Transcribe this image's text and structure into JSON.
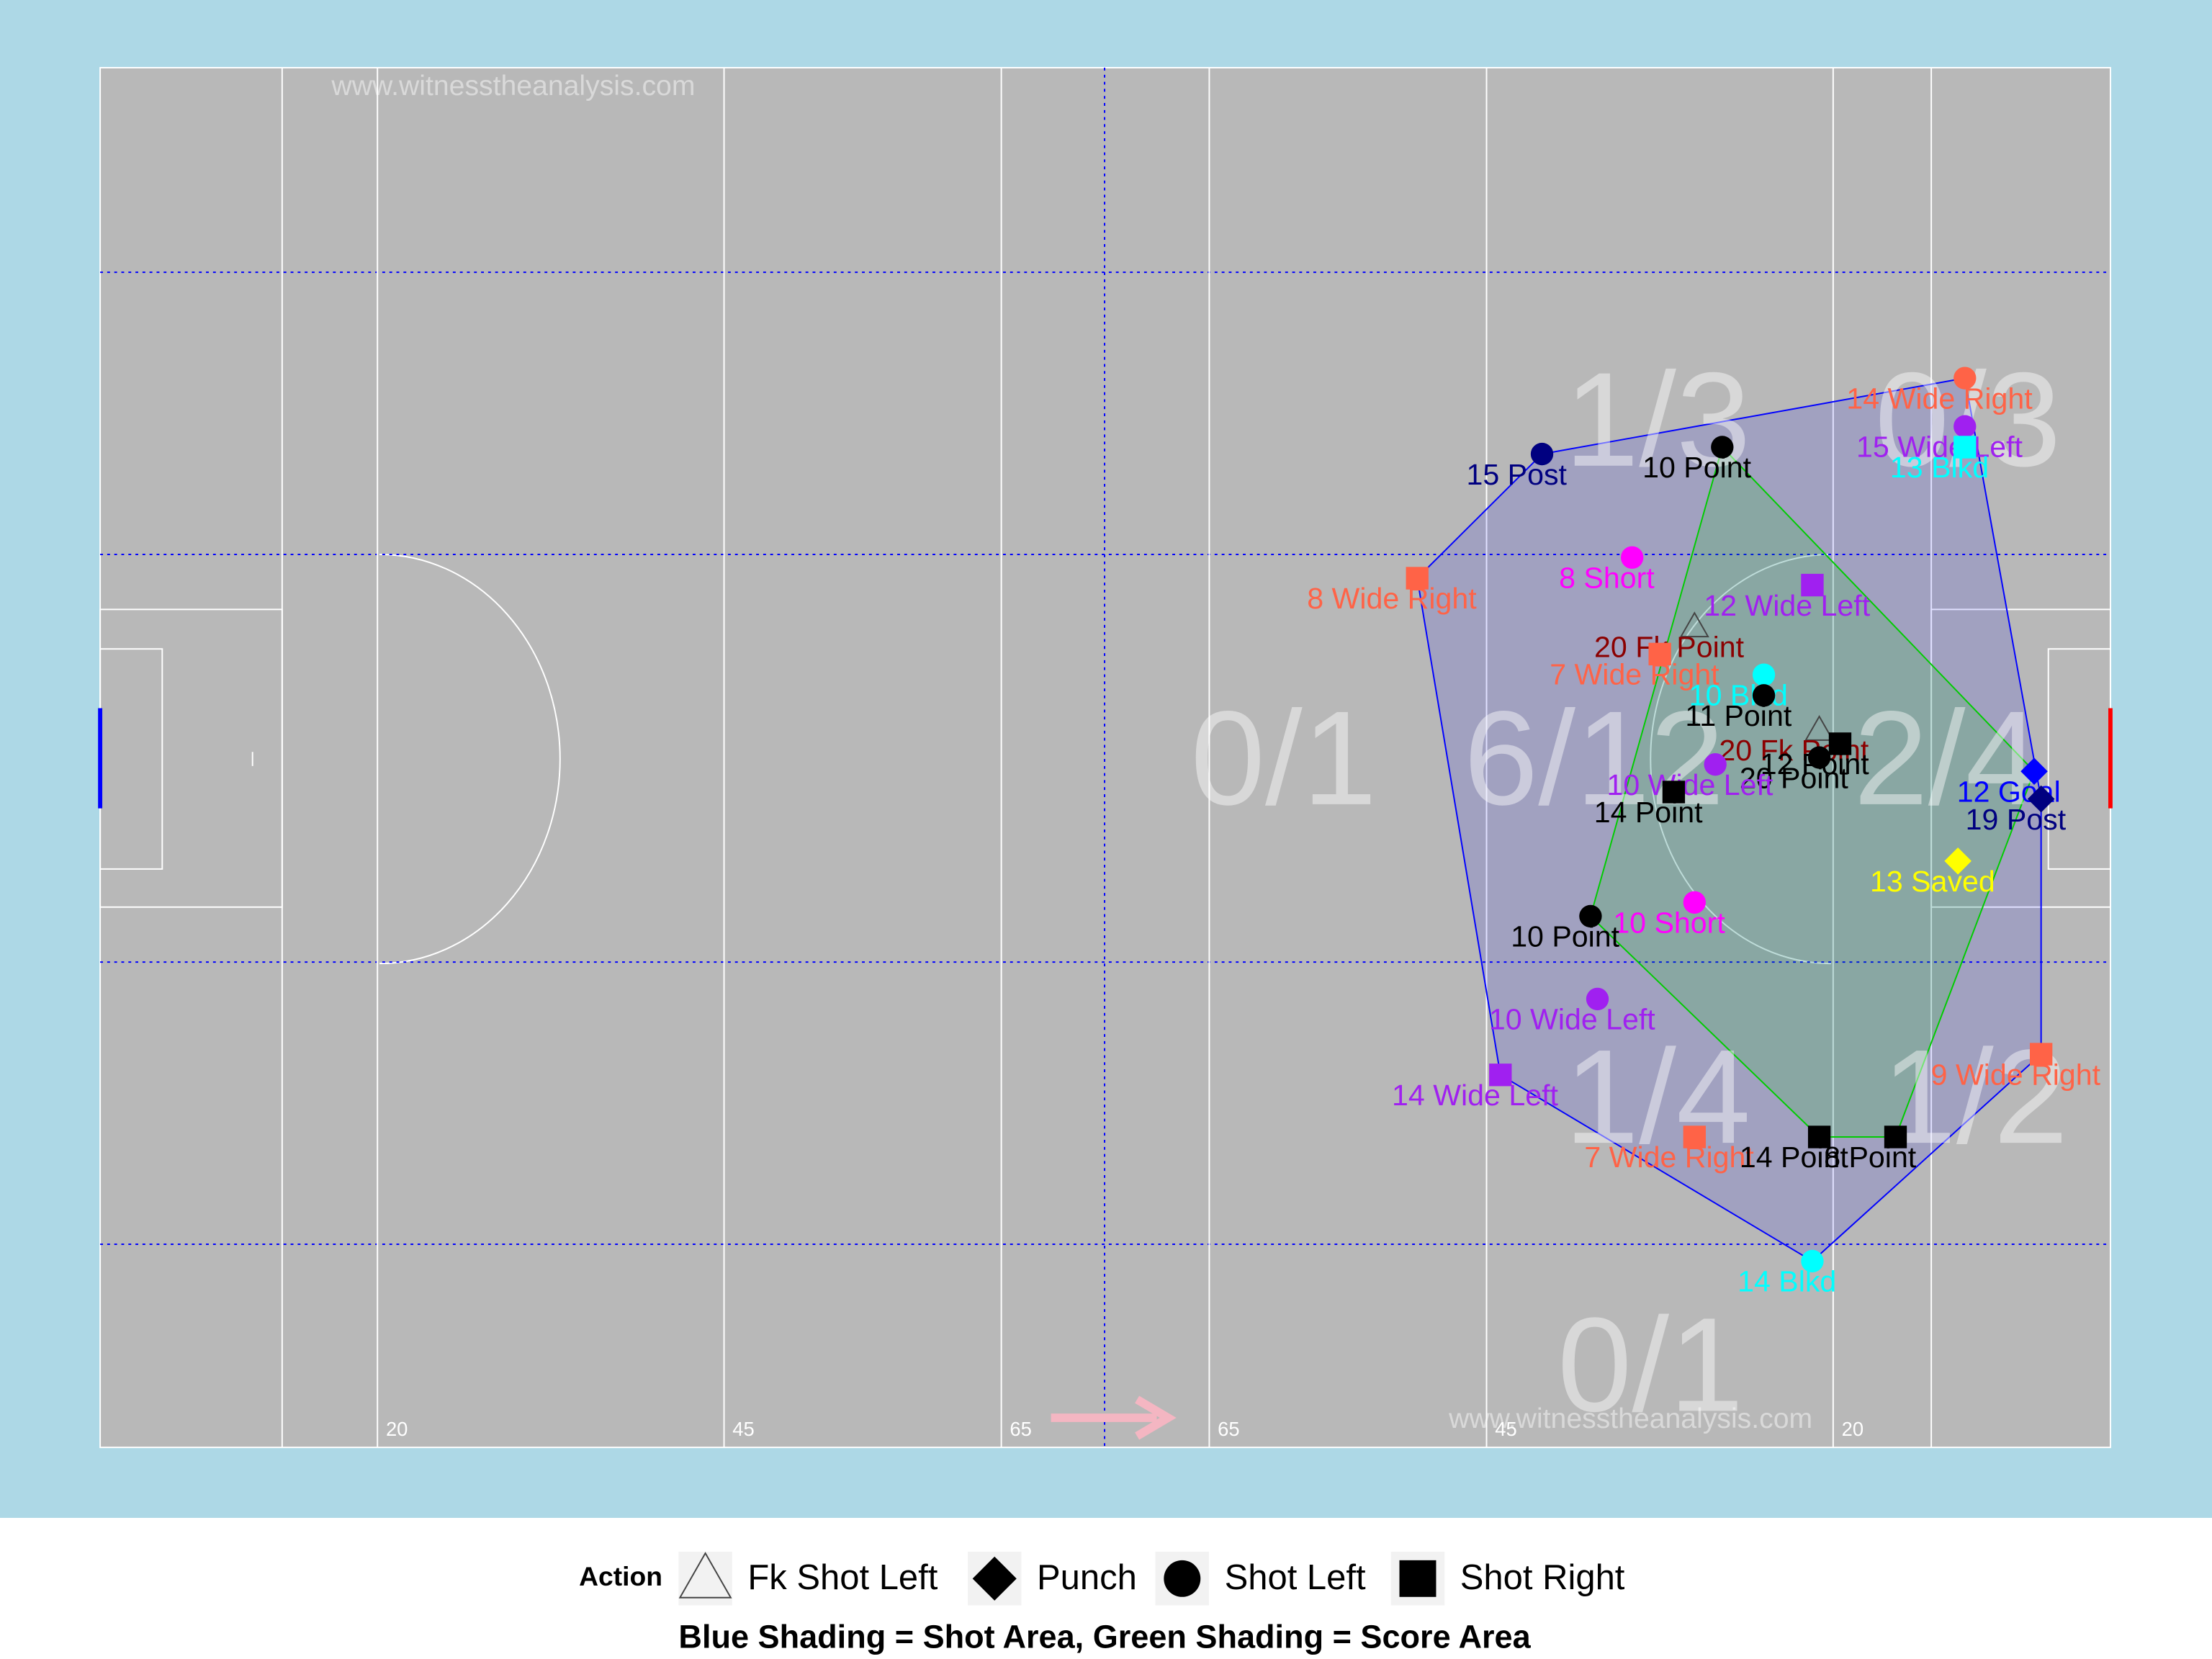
{
  "chart_data": {
    "type": "scatter",
    "xlim": [
      0,
      145
    ],
    "ylim": [
      0,
      100
    ],
    "xticks": [
      20,
      45,
      65,
      {
        "value": 80,
        "label": "65"
      },
      {
        "value": 100,
        "label": "45"
      },
      {
        "value": 125,
        "label": "20"
      }
    ],
    "watermark": "www.witnesstheanalysis.com",
    "zone_labels": [
      "1/3",
      "0/3",
      "0/1",
      "6/12",
      "2/4",
      "1/4",
      "1/2",
      "0/1"
    ],
    "legend_title": "Action",
    "caption": "Blue Shading = Shot Area, Green Shading = Score Area",
    "shot_area_color": "#0000FF",
    "score_area_color": "#00CC00",
    "series": [
      {
        "name": "Fk Shot Left",
        "shape": "triangle",
        "x": [
          115,
          124
        ],
        "y": [
          59.5,
          52
        ],
        "labels": [
          "20 Fk Point",
          "20 Fk Point"
        ],
        "colors": [
          "#8B0000",
          "#8B0000"
        ]
      },
      {
        "name": "Punch",
        "shape": "diamond",
        "x": [
          139.5,
          140,
          134
        ],
        "y": [
          49,
          47,
          42.5
        ],
        "labels": [
          "12 Goal",
          "19 Post",
          "13 Saved"
        ],
        "colors": [
          "#0000FF",
          "#000080",
          "#FFFF00"
        ]
      },
      {
        "name": "Shot Left",
        "shape": "circle",
        "x": [
          134.5,
          134.5,
          104,
          117,
          110.5,
          120,
          120,
          124,
          116.5,
          115,
          107.5,
          108,
          123.5
        ],
        "y": [
          77.5,
          74,
          72,
          72.5,
          64.5,
          56,
          54.5,
          50,
          49.5,
          39.5,
          38.5,
          32.5,
          13.5
        ],
        "labels": [
          "14 Wide Right",
          "15 Wide Left",
          "15 Post",
          "10 Point",
          "8 Short",
          "10 Blkd",
          "11 Point",
          "20 Point",
          "10 Wide Left",
          "10 Short",
          "10 Point",
          "10 Wide Left",
          "14 Blkd"
        ],
        "colors": [
          "#FF6347",
          "#A020F0",
          "#000080",
          "#000000",
          "#FF00FF",
          "#00FFFF",
          "#000000",
          "#000000",
          "#A020F0",
          "#FF00FF",
          "#000000",
          "#A020F0",
          "#00FFFF"
        ]
      },
      {
        "name": "Shot Right",
        "shape": "square",
        "x": [
          134.5,
          95,
          123.5,
          112.5,
          125.5,
          113.5,
          101,
          140,
          115,
          124,
          129.5
        ],
        "y": [
          72.5,
          63,
          62.5,
          57.5,
          51,
          47.5,
          27,
          28.5,
          22.5,
          22.5,
          22.5
        ],
        "labels": [
          "13 Blkd",
          "8 Wide Right",
          "12 Wide Left",
          "7 Wide Right",
          "12 Point",
          "14 Point",
          "14 Wide Left",
          "9 Wide Right",
          "7 Wide Right",
          "14 Point",
          "8 Point"
        ],
        "colors": [
          "#00FFFF",
          "#FF6347",
          "#A020F0",
          "#FF6347",
          "#000000",
          "#000000",
          "#A020F0",
          "#FF6347",
          "#FF6347",
          "#000000",
          "#000000"
        ]
      }
    ]
  }
}
